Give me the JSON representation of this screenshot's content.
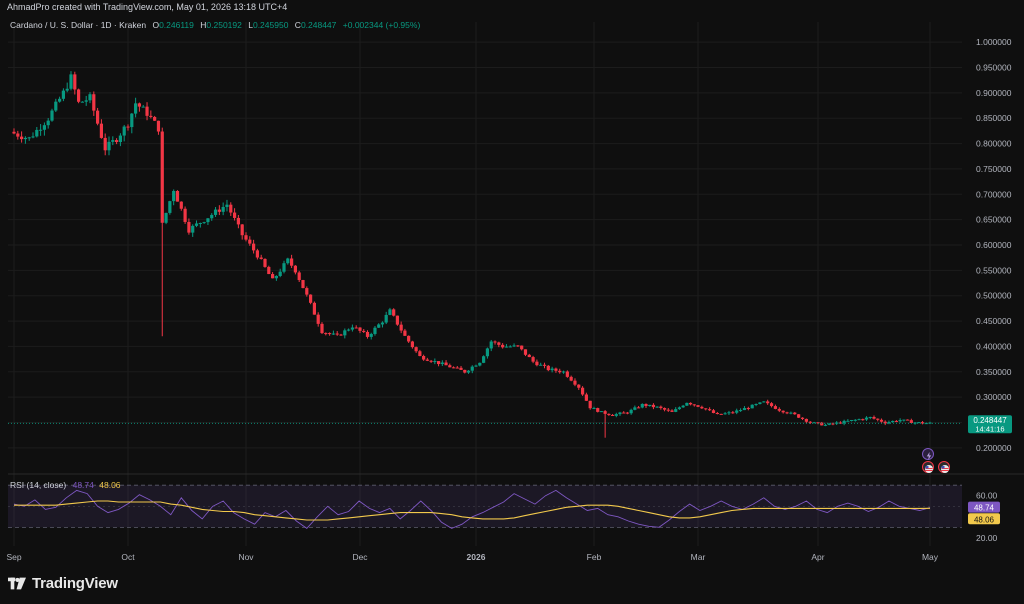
{
  "credit": "AhmadPro created with TradingView.com, May 01, 2026 13:18 UTC+4",
  "legend": {
    "symbol": "Cardano / U. S. Dollar · 1D · Kraken",
    "o_label": "O",
    "o_value": "0.246119",
    "h_label": "H",
    "h_value": "0.250192",
    "l_label": "L",
    "l_value": "0.245950",
    "c_label": "C",
    "c_value": "0.248447",
    "change": "+0.002344 (+0.95%)"
  },
  "rsi_legend": {
    "name": "RSI (14, close)",
    "rsi_value": "48.74",
    "ma_value": "48.06"
  },
  "price_tag": {
    "price": "0.248447",
    "countdown": "14:41:16"
  },
  "rsi_tags": {
    "rsi": "48.74",
    "ma": "48.06"
  },
  "logo_text": "TradingView",
  "colors": {
    "up": "#089981",
    "down": "#f23645",
    "rsi": "#7e57c2",
    "rsi_ma": "#f2c94c",
    "price_line": "#089981"
  },
  "chart_data": [
    {
      "type": "candlestick",
      "title": "Cardano / U. S. Dollar · 1D · Kraken",
      "ylim": [
        0.18,
        1.02
      ],
      "y_ticks": [
        "1.000000",
        "0.950000",
        "0.900000",
        "0.850000",
        "0.800000",
        "0.750000",
        "0.700000",
        "0.650000",
        "0.600000",
        "0.550000",
        "0.500000",
        "0.450000",
        "0.400000",
        "0.350000",
        "0.300000",
        "0.250000",
        "0.200000"
      ],
      "x_ticks": [
        "Sep",
        "Oct",
        "Nov",
        "Dec",
        "2026",
        "Feb",
        "Mar",
        "Apr",
        "May"
      ],
      "close_path": [
        {
          "x": "Sep 1",
          "close": 0.82
        },
        {
          "x": "Sep 5",
          "close": 0.81
        },
        {
          "x": "Sep 10",
          "close": 0.85
        },
        {
          "x": "Sep 14",
          "close": 0.9
        },
        {
          "x": "Sep 16",
          "close": 0.93
        },
        {
          "x": "Sep 18",
          "close": 0.88
        },
        {
          "x": "Sep 21",
          "close": 0.89
        },
        {
          "x": "Sep 23",
          "close": 0.84
        },
        {
          "x": "Sep 25",
          "close": 0.79
        },
        {
          "x": "Sep 28",
          "close": 0.81
        },
        {
          "x": "Oct 1",
          "close": 0.84
        },
        {
          "x": "Oct 3",
          "close": 0.88
        },
        {
          "x": "Oct 6",
          "close": 0.86
        },
        {
          "x": "Oct 9",
          "close": 0.83
        },
        {
          "x": "Oct 10",
          "close": 0.64
        },
        {
          "x": "Oct 13",
          "close": 0.71
        },
        {
          "x": "Oct 17",
          "close": 0.63
        },
        {
          "x": "Oct 21",
          "close": 0.65
        },
        {
          "x": "Oct 27",
          "close": 0.68
        },
        {
          "x": "Oct 31",
          "close": 0.62
        },
        {
          "x": "Nov 4",
          "close": 0.58
        },
        {
          "x": "Nov 8",
          "close": 0.53
        },
        {
          "x": "Nov 12",
          "close": 0.57
        },
        {
          "x": "Nov 14",
          "close": 0.55
        },
        {
          "x": "Nov 17",
          "close": 0.5
        },
        {
          "x": "Nov 21",
          "close": 0.43
        },
        {
          "x": "Nov 25",
          "close": 0.42
        },
        {
          "x": "Nov 29",
          "close": 0.44
        },
        {
          "x": "Dec 3",
          "close": 0.42
        },
        {
          "x": "Dec 7",
          "close": 0.45
        },
        {
          "x": "Dec 9",
          "close": 0.47
        },
        {
          "x": "Dec 13",
          "close": 0.42
        },
        {
          "x": "Dec 17",
          "close": 0.38
        },
        {
          "x": "Dec 21",
          "close": 0.37
        },
        {
          "x": "Dec 25",
          "close": 0.36
        },
        {
          "x": "Dec 29",
          "close": 0.35
        },
        {
          "x": "Jan 2",
          "close": 0.37
        },
        {
          "x": "Jan 5",
          "close": 0.41
        },
        {
          "x": "Jan 8",
          "close": 0.4
        },
        {
          "x": "Jan 12",
          "close": 0.4
        },
        {
          "x": "Jan 16",
          "close": 0.37
        },
        {
          "x": "Jan 20",
          "close": 0.355
        },
        {
          "x": "Jan 24",
          "close": 0.35
        },
        {
          "x": "Jan 28",
          "close": 0.32
        },
        {
          "x": "Jan 31",
          "close": 0.28
        },
        {
          "x": "Feb 3",
          "close": 0.27
        },
        {
          "x": "Feb 6",
          "close": 0.265
        },
        {
          "x": "Feb 10",
          "close": 0.27
        },
        {
          "x": "Feb 14",
          "close": 0.285
        },
        {
          "x": "Feb 18",
          "close": 0.28
        },
        {
          "x": "Feb 22",
          "close": 0.27
        },
        {
          "x": "Feb 26",
          "close": 0.29
        },
        {
          "x": "Mar 2",
          "close": 0.28
        },
        {
          "x": "Mar 6",
          "close": 0.265
        },
        {
          "x": "Mar 10",
          "close": 0.27
        },
        {
          "x": "Mar 14",
          "close": 0.28
        },
        {
          "x": "Mar 18",
          "close": 0.29
        },
        {
          "x": "Mar 22",
          "close": 0.275
        },
        {
          "x": "Mar 26",
          "close": 0.265
        },
        {
          "x": "Mar 30",
          "close": 0.25
        },
        {
          "x": "Apr 3",
          "close": 0.245
        },
        {
          "x": "Apr 7",
          "close": 0.25
        },
        {
          "x": "Apr 11",
          "close": 0.255
        },
        {
          "x": "Apr 15",
          "close": 0.26
        },
        {
          "x": "Apr 19",
          "close": 0.25
        },
        {
          "x": "Apr 23",
          "close": 0.255
        },
        {
          "x": "Apr 27",
          "close": 0.25
        },
        {
          "x": "May 1",
          "close": 0.248447
        }
      ]
    },
    {
      "type": "line",
      "title": "RSI (14, close)",
      "ylim": [
        18,
        73
      ],
      "y_ticks": [
        "60.00",
        "20.00"
      ],
      "bands": [
        30,
        70
      ],
      "series": [
        {
          "name": "RSI (14, close)",
          "values": [
            52,
            50,
            56,
            47,
            49,
            58,
            65,
            62,
            50,
            44,
            47,
            53,
            61,
            56,
            50,
            42,
            58,
            46,
            38,
            50,
            55,
            44,
            38,
            33,
            44,
            40,
            46,
            36,
            29,
            40,
            50,
            42,
            45,
            55,
            48,
            44,
            48,
            38,
            46,
            55,
            46,
            35,
            29,
            33,
            40,
            44,
            49,
            54,
            62,
            57,
            52,
            60,
            65,
            58,
            52,
            46,
            48,
            42,
            40,
            36,
            33,
            31,
            30,
            37,
            45,
            52,
            46,
            50,
            55,
            50,
            47,
            52,
            58,
            50,
            47,
            50,
            55,
            47,
            44,
            50,
            53,
            50,
            45,
            49,
            55,
            50,
            48,
            46,
            48.74
          ]
        },
        {
          "name": "MA",
          "values": [
            51,
            51,
            51,
            51,
            51,
            52,
            53,
            54,
            55,
            55,
            54,
            54,
            54,
            54,
            54,
            52,
            51,
            49,
            47,
            46,
            45,
            45,
            44,
            42,
            41,
            40,
            39,
            38,
            37,
            37,
            37,
            38,
            39,
            40,
            41,
            42,
            43,
            44,
            44,
            44,
            44,
            43,
            42,
            40,
            39,
            38,
            38,
            38,
            39,
            41,
            43,
            45,
            47,
            49,
            50,
            51,
            51,
            51,
            50,
            48,
            46,
            44,
            42,
            40,
            39,
            39,
            40,
            42,
            44,
            46,
            47,
            48,
            48,
            48,
            48,
            48,
            48,
            48,
            48,
            48,
            48,
            48,
            48,
            48,
            48,
            48,
            48,
            48,
            48.06
          ]
        }
      ]
    }
  ]
}
